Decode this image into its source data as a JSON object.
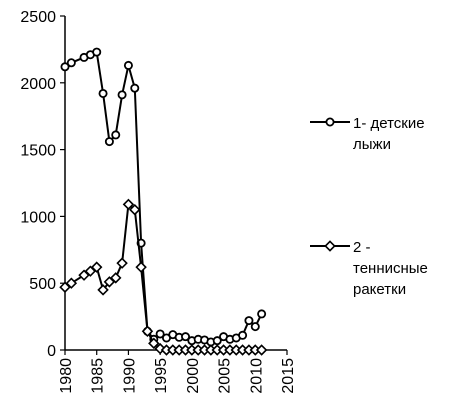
{
  "chart_data": {
    "type": "line",
    "title": "",
    "xlabel": "",
    "ylabel": "",
    "xlim": [
      1980,
      2015
    ],
    "ylim": [
      0,
      2500
    ],
    "xticks": [
      1980,
      1985,
      1990,
      1995,
      2000,
      2005,
      2010,
      2015
    ],
    "yticks": [
      0,
      500,
      1000,
      1500,
      2000,
      2500
    ],
    "grid": false,
    "legend_position": "right",
    "series": [
      {
        "name_lines": [
          "1- детские",
          "лыжи"
        ],
        "marker": "circle",
        "color": "#000000",
        "points": [
          [
            1980,
            2120
          ],
          [
            1981,
            2150
          ],
          [
            1983,
            2190
          ],
          [
            1984,
            2210
          ],
          [
            1985,
            2230
          ],
          [
            1986,
            1920
          ],
          [
            1987,
            1560
          ],
          [
            1988,
            1610
          ],
          [
            1989,
            1910
          ],
          [
            1990,
            2130
          ],
          [
            1991,
            1960
          ],
          [
            1992,
            800
          ],
          [
            1993,
            140
          ],
          [
            1994,
            80
          ],
          [
            1995,
            120
          ],
          [
            1996,
            90
          ],
          [
            1997,
            115
          ],
          [
            1998,
            95
          ],
          [
            1999,
            100
          ],
          [
            2000,
            70
          ],
          [
            2001,
            80
          ],
          [
            2002,
            75
          ],
          [
            2003,
            60
          ],
          [
            2004,
            70
          ],
          [
            2005,
            100
          ],
          [
            2006,
            80
          ],
          [
            2007,
            90
          ],
          [
            2008,
            110
          ],
          [
            2009,
            220
          ],
          [
            2010,
            175
          ],
          [
            2011,
            270
          ]
        ]
      },
      {
        "name_lines": [
          "2 -",
          "теннисные",
          "ракетки"
        ],
        "marker": "diamond",
        "color": "#000000",
        "points": [
          [
            1980,
            470
          ],
          [
            1981,
            500
          ],
          [
            1983,
            560
          ],
          [
            1984,
            590
          ],
          [
            1985,
            620
          ],
          [
            1986,
            450
          ],
          [
            1987,
            510
          ],
          [
            1988,
            540
          ],
          [
            1989,
            650
          ],
          [
            1990,
            1090
          ],
          [
            1991,
            1050
          ],
          [
            1992,
            620
          ],
          [
            1993,
            140
          ],
          [
            1994,
            50
          ],
          [
            1995,
            10
          ],
          [
            1996,
            0
          ],
          [
            1997,
            0
          ],
          [
            1998,
            0
          ],
          [
            1999,
            0
          ],
          [
            2000,
            0
          ],
          [
            2001,
            0
          ],
          [
            2002,
            0
          ],
          [
            2003,
            0
          ],
          [
            2004,
            0
          ],
          [
            2005,
            0
          ],
          [
            2006,
            0
          ],
          [
            2007,
            0
          ],
          [
            2008,
            0
          ],
          [
            2009,
            0
          ],
          [
            2010,
            0
          ],
          [
            2011,
            0
          ]
        ]
      }
    ]
  }
}
